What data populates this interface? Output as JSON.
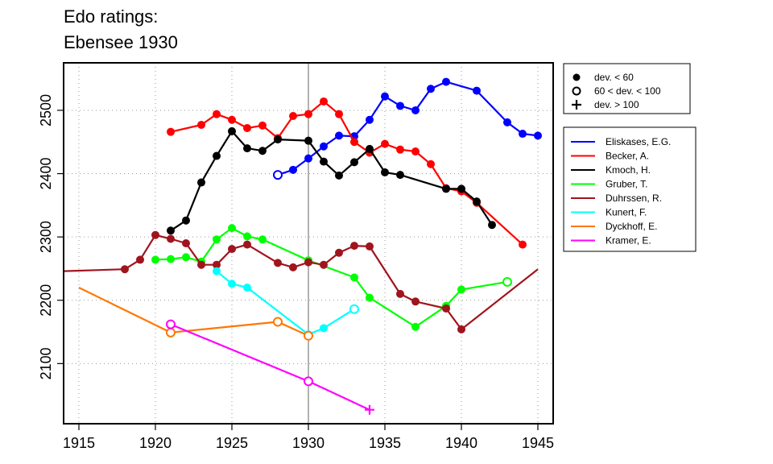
{
  "chart_data": {
    "type": "line",
    "title_lines": [
      "Edo ratings:",
      "Ebensee 1930"
    ],
    "xlabel": "",
    "ylabel": "",
    "xlim": [
      1914,
      1946
    ],
    "ylim": [
      2005,
      2575
    ],
    "x_ticks": [
      1915,
      1920,
      1925,
      1930,
      1935,
      1940,
      1945
    ],
    "y_ticks": [
      2100,
      2200,
      2300,
      2400,
      2500
    ],
    "grid": true,
    "reference_line_x": 1930,
    "marker_legend": [
      {
        "marker": "filled",
        "label": "dev. < 60"
      },
      {
        "marker": "open",
        "label": "60 < dev. < 100"
      },
      {
        "marker": "plus",
        "label": "dev. > 100"
      }
    ],
    "series": [
      {
        "name": "Eliskases, E.G.",
        "color": "#0000ff",
        "points": [
          [
            1928,
            2398,
            "o"
          ],
          [
            1929,
            2406,
            "f"
          ],
          [
            1930,
            2424,
            "f"
          ],
          [
            1931,
            2443,
            "f"
          ],
          [
            1932,
            2460,
            "f"
          ],
          [
            1933,
            2459,
            "f"
          ],
          [
            1934,
            2485,
            "f"
          ],
          [
            1935,
            2522,
            "f"
          ],
          [
            1936,
            2507,
            "f"
          ],
          [
            1937,
            2500,
            "f"
          ],
          [
            1938,
            2534,
            "f"
          ],
          [
            1939,
            2545,
            "f"
          ],
          [
            1941,
            2531,
            "f"
          ],
          [
            1943,
            2481,
            "f"
          ],
          [
            1944,
            2463,
            "f"
          ],
          [
            1945,
            2460,
            "f"
          ]
        ]
      },
      {
        "name": "Becker, A.",
        "color": "#ff0000",
        "points": [
          [
            1921,
            2466,
            "f"
          ],
          [
            1923,
            2477,
            "f"
          ],
          [
            1924,
            2494,
            "f"
          ],
          [
            1925,
            2485,
            "f"
          ],
          [
            1926,
            2472,
            "f"
          ],
          [
            1927,
            2476,
            "f"
          ],
          [
            1928,
            2456,
            "f"
          ],
          [
            1929,
            2491,
            "f"
          ],
          [
            1930,
            2494,
            "f"
          ],
          [
            1931,
            2514,
            "f"
          ],
          [
            1932,
            2494,
            "f"
          ],
          [
            1933,
            2450,
            "f"
          ],
          [
            1934,
            2433,
            "f"
          ],
          [
            1935,
            2447,
            "f"
          ],
          [
            1936,
            2438,
            "f"
          ],
          [
            1937,
            2435,
            "f"
          ],
          [
            1938,
            2415,
            "f"
          ],
          [
            1939,
            2377,
            "f"
          ],
          [
            1940,
            2372,
            "f"
          ],
          [
            1941,
            2354,
            "f"
          ],
          [
            1944,
            2288,
            "f"
          ]
        ]
      },
      {
        "name": "Kmoch, H.",
        "color": "#000000",
        "points": [
          [
            1921,
            2310,
            "f"
          ],
          [
            1922,
            2326,
            "f"
          ],
          [
            1923,
            2386,
            "f"
          ],
          [
            1924,
            2428,
            "f"
          ],
          [
            1925,
            2467,
            "f"
          ],
          [
            1926,
            2440,
            "f"
          ],
          [
            1927,
            2436,
            "f"
          ],
          [
            1928,
            2454,
            "f"
          ],
          [
            1930,
            2452,
            "f"
          ],
          [
            1931,
            2419,
            "f"
          ],
          [
            1932,
            2397,
            "f"
          ],
          [
            1933,
            2418,
            "f"
          ],
          [
            1934,
            2439,
            "f"
          ],
          [
            1935,
            2402,
            "f"
          ],
          [
            1936,
            2398,
            "f"
          ],
          [
            1939,
            2376,
            "f"
          ],
          [
            1940,
            2376,
            "f"
          ],
          [
            1941,
            2356,
            "f"
          ],
          [
            1942,
            2319,
            "f"
          ]
        ]
      },
      {
        "name": "Gruber, T.",
        "color": "#00ff00",
        "points": [
          [
            1920,
            2264,
            "f"
          ],
          [
            1921,
            2265,
            "f"
          ],
          [
            1922,
            2268,
            "f"
          ],
          [
            1923,
            2261,
            "f"
          ],
          [
            1924,
            2296,
            "f"
          ],
          [
            1925,
            2314,
            "f"
          ],
          [
            1926,
            2301,
            "f"
          ],
          [
            1927,
            2296,
            "f"
          ],
          [
            1930,
            2263,
            "f"
          ],
          [
            1933,
            2236,
            "f"
          ],
          [
            1934,
            2204,
            "f"
          ],
          [
            1937,
            2158,
            "f"
          ],
          [
            1939,
            2191,
            "f"
          ],
          [
            1940,
            2217,
            "f"
          ],
          [
            1943,
            2229,
            "o"
          ]
        ]
      },
      {
        "name": "Duhrssen, R.",
        "color": "#a0141e",
        "points": [
          [
            1914,
            2246,
            "n"
          ],
          [
            1918,
            2249,
            "f"
          ],
          [
            1919,
            2264,
            "f"
          ],
          [
            1920,
            2303,
            "f"
          ],
          [
            1921,
            2297,
            "f"
          ],
          [
            1922,
            2290,
            "f"
          ],
          [
            1923,
            2256,
            "f"
          ],
          [
            1924,
            2256,
            "f"
          ],
          [
            1925,
            2281,
            "f"
          ],
          [
            1926,
            2288,
            "f"
          ],
          [
            1928,
            2259,
            "f"
          ],
          [
            1929,
            2252,
            "f"
          ],
          [
            1930,
            2260,
            "f"
          ],
          [
            1931,
            2256,
            "f"
          ],
          [
            1932,
            2275,
            "f"
          ],
          [
            1933,
            2286,
            "f"
          ],
          [
            1934,
            2285,
            "f"
          ],
          [
            1936,
            2210,
            "f"
          ],
          [
            1937,
            2198,
            "f"
          ],
          [
            1939,
            2187,
            "f"
          ],
          [
            1940,
            2154,
            "f"
          ],
          [
            1945,
            2249,
            "n"
          ]
        ]
      },
      {
        "name": "Kunert, F.",
        "color": "#00ffff",
        "points": [
          [
            1924,
            2246,
            "f"
          ],
          [
            1925,
            2226,
            "f"
          ],
          [
            1926,
            2220,
            "f"
          ],
          [
            1930,
            2146,
            "f"
          ],
          [
            1931,
            2156,
            "f"
          ],
          [
            1933,
            2186,
            "o"
          ]
        ]
      },
      {
        "name": "Dyckhoff, E.",
        "color": "#ff7700",
        "points": [
          [
            1915,
            2220,
            "n"
          ],
          [
            1921,
            2149,
            "o"
          ],
          [
            1928,
            2166,
            "o"
          ],
          [
            1930,
            2144,
            "o"
          ]
        ]
      },
      {
        "name": "Kramer, E.",
        "color": "#ff00ff",
        "points": [
          [
            1921,
            2162,
            "o"
          ],
          [
            1930,
            2072,
            "o"
          ],
          [
            1934,
            2027,
            "p"
          ]
        ]
      }
    ]
  }
}
